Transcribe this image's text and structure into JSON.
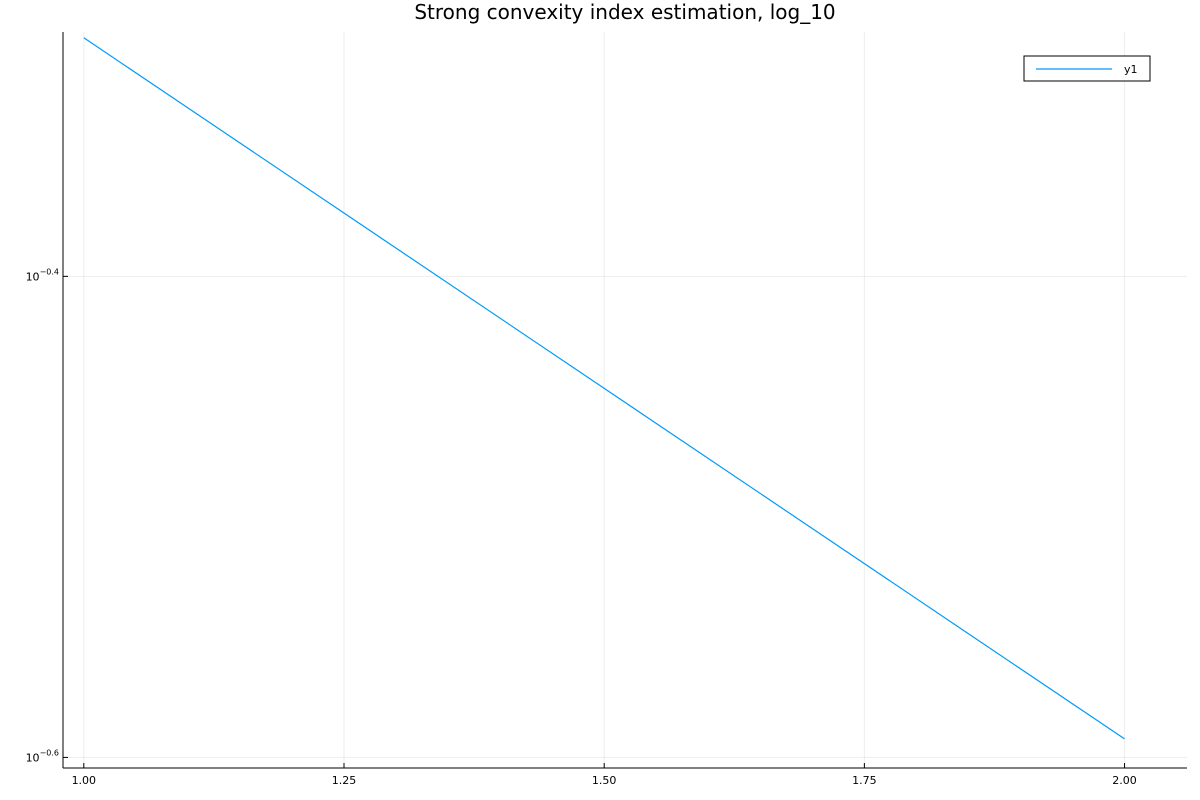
{
  "chart_data": {
    "type": "line",
    "title": "Strong convexity index estimation, log_10",
    "xlabel": "",
    "ylabel": "",
    "x_scale": "linear",
    "y_scale": "log10",
    "xlim": [
      0.98,
      2.06
    ],
    "ylim_log10": [
      -0.6044,
      -0.2984
    ],
    "x_ticks": [
      1.0,
      1.25,
      1.5,
      1.75,
      2.0
    ],
    "x_tick_labels": [
      "1.00",
      "1.25",
      "1.50",
      "1.75",
      "2.00"
    ],
    "y_ticks_log10": [
      -0.4,
      -0.6
    ],
    "y_tick_labels": [
      {
        "base": "10",
        "exp": "−0.4"
      },
      {
        "base": "10",
        "exp": "−0.6"
      }
    ],
    "grid": true,
    "legend_position": "top-right",
    "series": [
      {
        "name": "y1",
        "color": "#009AFA",
        "x": [
          1.0,
          2.0
        ],
        "y_log10": [
          -0.3008,
          -0.5923
        ]
      }
    ]
  }
}
